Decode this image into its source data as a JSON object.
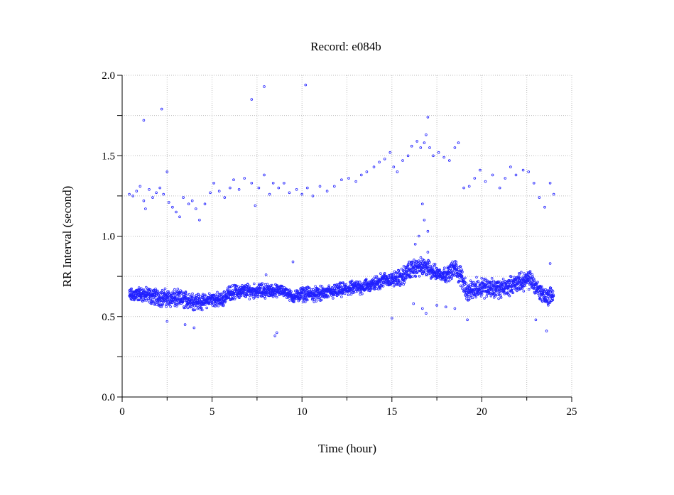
{
  "chart_data": {
    "type": "scatter",
    "title": "Record:  e084b",
    "xlabel": "Time (hour)",
    "ylabel": "RR Interval (second)",
    "xlim": [
      0,
      25
    ],
    "ylim": [
      0,
      2.0
    ],
    "xticks": [
      "0",
      "5",
      "10",
      "15",
      "20",
      "25"
    ],
    "xtick_values": [
      0,
      5,
      10,
      15,
      20,
      25
    ],
    "yticks": [
      "0.0",
      "0.5",
      "1.0",
      "1.5",
      "2.0"
    ],
    "ytick_values": [
      0,
      0.5,
      1.0,
      1.5,
      2.0
    ],
    "grid": true,
    "marker_color": "#2020ff",
    "band_trend": [
      [
        0.4,
        0.63,
        0.04
      ],
      [
        1.0,
        0.64,
        0.04
      ],
      [
        2.0,
        0.62,
        0.05
      ],
      [
        3.0,
        0.61,
        0.05
      ],
      [
        4.0,
        0.6,
        0.05
      ],
      [
        4.5,
        0.59,
        0.04
      ],
      [
        5.0,
        0.61,
        0.04
      ],
      [
        5.5,
        0.6,
        0.04
      ],
      [
        6.0,
        0.65,
        0.04
      ],
      [
        7.0,
        0.66,
        0.04
      ],
      [
        8.0,
        0.66,
        0.04
      ],
      [
        9.0,
        0.66,
        0.03
      ],
      [
        9.5,
        0.62,
        0.03
      ],
      [
        10.0,
        0.64,
        0.04
      ],
      [
        11.0,
        0.64,
        0.04
      ],
      [
        12.0,
        0.66,
        0.04
      ],
      [
        13.0,
        0.68,
        0.04
      ],
      [
        14.0,
        0.7,
        0.04
      ],
      [
        14.5,
        0.73,
        0.04
      ],
      [
        15.0,
        0.73,
        0.04
      ],
      [
        15.5,
        0.74,
        0.05
      ],
      [
        16.0,
        0.79,
        0.05
      ],
      [
        16.5,
        0.81,
        0.05
      ],
      [
        17.0,
        0.8,
        0.05
      ],
      [
        17.5,
        0.77,
        0.04
      ],
      [
        18.0,
        0.76,
        0.04
      ],
      [
        18.5,
        0.8,
        0.05
      ],
      [
        18.9,
        0.74,
        0.06
      ],
      [
        19.2,
        0.65,
        0.05
      ],
      [
        20.0,
        0.69,
        0.06
      ],
      [
        21.0,
        0.67,
        0.05
      ],
      [
        22.0,
        0.71,
        0.05
      ],
      [
        22.7,
        0.73,
        0.05
      ],
      [
        23.2,
        0.66,
        0.05
      ],
      [
        23.6,
        0.62,
        0.05
      ],
      [
        24.0,
        0.64,
        0.05
      ]
    ],
    "upper_points": [
      [
        0.4,
        1.26
      ],
      [
        0.6,
        1.25
      ],
      [
        0.8,
        1.28
      ],
      [
        1.0,
        1.31
      ],
      [
        1.2,
        1.22
      ],
      [
        1.3,
        1.17
      ],
      [
        1.5,
        1.29
      ],
      [
        1.7,
        1.24
      ],
      [
        1.9,
        1.27
      ],
      [
        2.1,
        1.3
      ],
      [
        2.3,
        1.26
      ],
      [
        2.5,
        1.4
      ],
      [
        2.6,
        1.21
      ],
      [
        2.8,
        1.18
      ],
      [
        3.0,
        1.15
      ],
      [
        3.2,
        1.12
      ],
      [
        3.4,
        1.24
      ],
      [
        3.7,
        1.2
      ],
      [
        3.9,
        1.22
      ],
      [
        4.1,
        1.17
      ],
      [
        4.3,
        1.1
      ],
      [
        4.6,
        1.2
      ],
      [
        4.9,
        1.27
      ],
      [
        5.1,
        1.33
      ],
      [
        5.4,
        1.28
      ],
      [
        5.7,
        1.24
      ],
      [
        6.0,
        1.3
      ],
      [
        6.2,
        1.35
      ],
      [
        6.5,
        1.29
      ],
      [
        6.8,
        1.36
      ],
      [
        7.2,
        1.33
      ],
      [
        7.4,
        1.19
      ],
      [
        7.6,
        1.3
      ],
      [
        7.9,
        1.38
      ],
      [
        8.2,
        1.26
      ],
      [
        8.4,
        1.33
      ],
      [
        8.7,
        1.3
      ],
      [
        9.0,
        1.33
      ],
      [
        9.3,
        1.27
      ],
      [
        9.7,
        1.29
      ],
      [
        10.0,
        1.26
      ],
      [
        10.3,
        1.3
      ],
      [
        10.6,
        1.25
      ],
      [
        11.0,
        1.31
      ],
      [
        11.4,
        1.28
      ],
      [
        11.8,
        1.31
      ],
      [
        12.2,
        1.35
      ],
      [
        12.6,
        1.36
      ],
      [
        13.0,
        1.34
      ],
      [
        13.3,
        1.38
      ],
      [
        13.6,
        1.4
      ],
      [
        14.0,
        1.43
      ],
      [
        14.3,
        1.46
      ],
      [
        14.6,
        1.48
      ],
      [
        14.9,
        1.52
      ],
      [
        15.1,
        1.43
      ],
      [
        15.3,
        1.4
      ],
      [
        15.6,
        1.47
      ],
      [
        15.9,
        1.5
      ],
      [
        16.1,
        1.56
      ],
      [
        16.4,
        1.59
      ],
      [
        16.6,
        1.55
      ],
      [
        16.8,
        1.58
      ],
      [
        16.9,
        1.63
      ],
      [
        17.1,
        1.55
      ],
      [
        17.3,
        1.5
      ],
      [
        17.6,
        1.52
      ],
      [
        17.9,
        1.49
      ],
      [
        18.2,
        1.47
      ],
      [
        18.5,
        1.55
      ],
      [
        18.7,
        1.58
      ],
      [
        19.0,
        1.3
      ],
      [
        19.3,
        1.31
      ],
      [
        19.6,
        1.36
      ],
      [
        19.9,
        1.41
      ],
      [
        20.2,
        1.34
      ],
      [
        20.6,
        1.38
      ],
      [
        21.0,
        1.3
      ],
      [
        21.3,
        1.36
      ],
      [
        21.6,
        1.43
      ],
      [
        21.9,
        1.38
      ],
      [
        22.3,
        1.41
      ],
      [
        22.6,
        1.4
      ],
      [
        22.9,
        1.33
      ],
      [
        23.2,
        1.24
      ],
      [
        23.5,
        1.18
      ],
      [
        23.8,
        1.33
      ],
      [
        24.0,
        1.26
      ]
    ],
    "outliers": [
      [
        1.2,
        1.72
      ],
      [
        2.2,
        1.79
      ],
      [
        7.2,
        1.85
      ],
      [
        7.9,
        1.93
      ],
      [
        10.2,
        1.94
      ],
      [
        17.0,
        1.74
      ],
      [
        16.7,
        1.2
      ],
      [
        16.8,
        1.1
      ],
      [
        16.5,
        1.0
      ],
      [
        17.0,
        1.03
      ],
      [
        16.3,
        0.95
      ],
      [
        16.7,
        0.55
      ],
      [
        16.9,
        0.52
      ],
      [
        17.0,
        0.9
      ],
      [
        8.5,
        0.38
      ],
      [
        8.6,
        0.4
      ],
      [
        4.0,
        0.43
      ],
      [
        23.6,
        0.41
      ],
      [
        15.0,
        0.49
      ],
      [
        8.0,
        0.76
      ],
      [
        9.5,
        0.84
      ],
      [
        23.8,
        0.83
      ],
      [
        3.5,
        0.45
      ],
      [
        19.2,
        0.48
      ],
      [
        2.5,
        0.47
      ],
      [
        17.5,
        0.57
      ],
      [
        18.0,
        0.56
      ],
      [
        18.5,
        0.55
      ],
      [
        16.2,
        0.58
      ],
      [
        23.0,
        0.48
      ]
    ]
  }
}
